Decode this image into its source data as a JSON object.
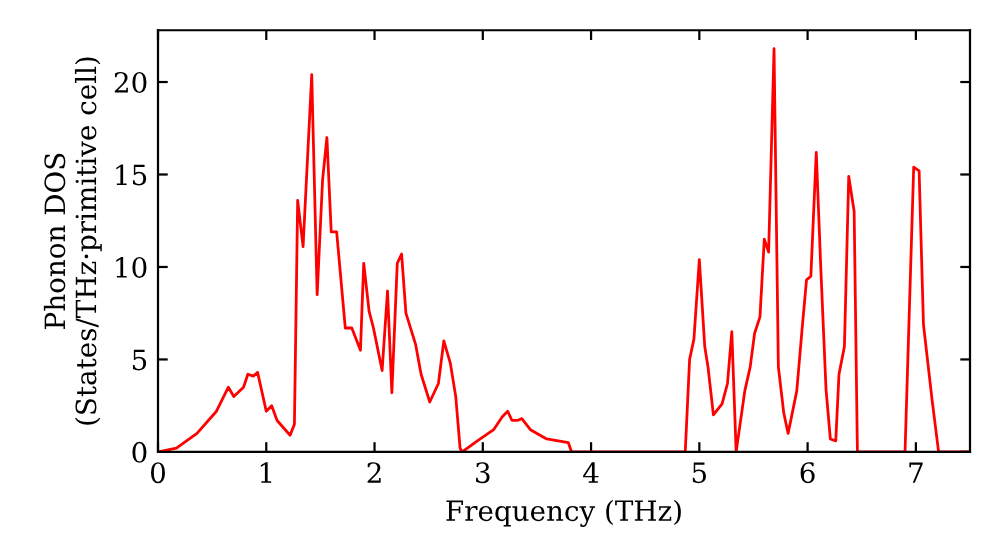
{
  "chart_data": {
    "type": "line",
    "xlabel": "Frequency (THz)",
    "ylabel": "Phonon DOS\n(States/THz·primitive cell)",
    "x": [
      0.0,
      0.17,
      0.36,
      0.54,
      0.65,
      0.7,
      0.79,
      0.83,
      0.88,
      0.92,
      1.0,
      1.05,
      1.1,
      1.22,
      1.26,
      1.29,
      1.34,
      1.42,
      1.47,
      1.52,
      1.56,
      1.6,
      1.65,
      1.73,
      1.79,
      1.87,
      1.9,
      1.95,
      1.99,
      2.07,
      2.12,
      2.16,
      2.21,
      2.25,
      2.29,
      2.38,
      2.43,
      2.51,
      2.59,
      2.64,
      2.7,
      2.75,
      2.79,
      2.81,
      2.95,
      3.1,
      3.18,
      3.23,
      3.27,
      3.32,
      3.36,
      3.44,
      3.59,
      3.79,
      3.82,
      4.87,
      4.91,
      4.95,
      5.0,
      5.05,
      5.08,
      5.13,
      5.21,
      5.26,
      5.3,
      5.34,
      5.42,
      5.47,
      5.51,
      5.56,
      5.6,
      5.64,
      5.69,
      5.73,
      5.78,
      5.82,
      5.9,
      5.95,
      5.99,
      6.03,
      6.08,
      6.12,
      6.17,
      6.21,
      6.26,
      6.29,
      6.34,
      6.38,
      6.43,
      6.46,
      6.9,
      6.98,
      7.03,
      7.07,
      7.15,
      7.21,
      7.5
    ],
    "series": [
      {
        "color": "#ff0000",
        "values": [
          0.0,
          0.2,
          1.0,
          2.2,
          3.5,
          3.0,
          3.5,
          4.2,
          4.1,
          4.3,
          2.2,
          2.5,
          1.7,
          0.9,
          1.5,
          13.6,
          11.1,
          20.4,
          8.5,
          14.7,
          17.0,
          11.9,
          11.9,
          6.7,
          6.7,
          5.5,
          10.2,
          7.6,
          6.7,
          4.4,
          8.7,
          3.2,
          10.2,
          10.7,
          7.5,
          5.8,
          4.2,
          2.7,
          3.7,
          6.0,
          4.8,
          3.0,
          0.2,
          0.0,
          0.6,
          1.2,
          1.9,
          2.2,
          1.7,
          1.7,
          1.8,
          1.2,
          0.7,
          0.5,
          0.0,
          0.0,
          5.0,
          6.1,
          10.4,
          5.7,
          4.6,
          2.0,
          2.6,
          3.7,
          6.5,
          0.0,
          3.3,
          4.6,
          6.4,
          7.3,
          11.5,
          10.8,
          21.8,
          4.6,
          2.1,
          1.0,
          3.3,
          6.7,
          9.3,
          9.5,
          16.2,
          10.2,
          3.4,
          0.7,
          0.6,
          4.2,
          5.7,
          14.9,
          13.0,
          0.0,
          0.0,
          15.4,
          15.2,
          6.9,
          2.8,
          0.0,
          0.0
        ]
      }
    ],
    "xlim": [
      0,
      7.5
    ],
    "ylim": [
      0,
      22.8
    ],
    "xticks": [
      0,
      1,
      2,
      3,
      4,
      5,
      6,
      7
    ],
    "yticks": [
      0,
      5,
      10,
      15,
      20
    ],
    "grid": false,
    "marker": "none",
    "line_style": "solid"
  }
}
